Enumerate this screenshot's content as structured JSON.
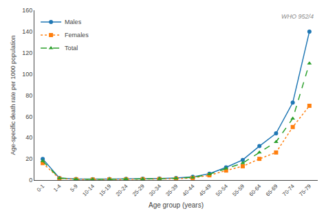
{
  "chart_data": {
    "type": "line",
    "xlabel": "Age group (years)",
    "ylabel": "Age-specific death rate per 1000 population",
    "categories": [
      "0-1",
      "1-4",
      "5-9",
      "10-14",
      "15-19",
      "20-24",
      "25-29",
      "30-34",
      "35-39",
      "40-44",
      "45-49",
      "50-54",
      "55-59",
      "60-64",
      "65-69",
      "70-74",
      "75-79"
    ],
    "series": [
      {
        "name": "Males",
        "line_style": "solid",
        "marker": "circle",
        "values": [
          20.0,
          2.0,
          1.0,
          0.8,
          1.0,
          1.2,
          1.3,
          1.5,
          2.0,
          3.0,
          6.0,
          12.0,
          19.0,
          32.0,
          44.0,
          73.0,
          140.0
        ]
      },
      {
        "name": "Females",
        "line_style": "dotted",
        "marker": "square",
        "values": [
          16.0,
          1.5,
          0.7,
          0.5,
          0.6,
          0.7,
          0.8,
          0.9,
          1.3,
          2.0,
          4.5,
          9.0,
          13.0,
          20.0,
          26.0,
          50.0,
          70.0
        ]
      },
      {
        "name": "Total",
        "line_style": "dashed",
        "marker": "triangle",
        "values": [
          18.0,
          1.8,
          0.8,
          0.6,
          0.8,
          1.0,
          1.0,
          1.2,
          1.7,
          2.5,
          5.5,
          11.0,
          16.0,
          26.0,
          36.0,
          58.0,
          110.0
        ]
      }
    ],
    "ylim": [
      0,
      160
    ],
    "yticks": [
      0,
      20,
      40,
      60,
      80,
      100,
      120,
      140,
      160
    ],
    "annotations": [
      "WHO 952/4"
    ],
    "legend": "upper left",
    "grid": false
  }
}
